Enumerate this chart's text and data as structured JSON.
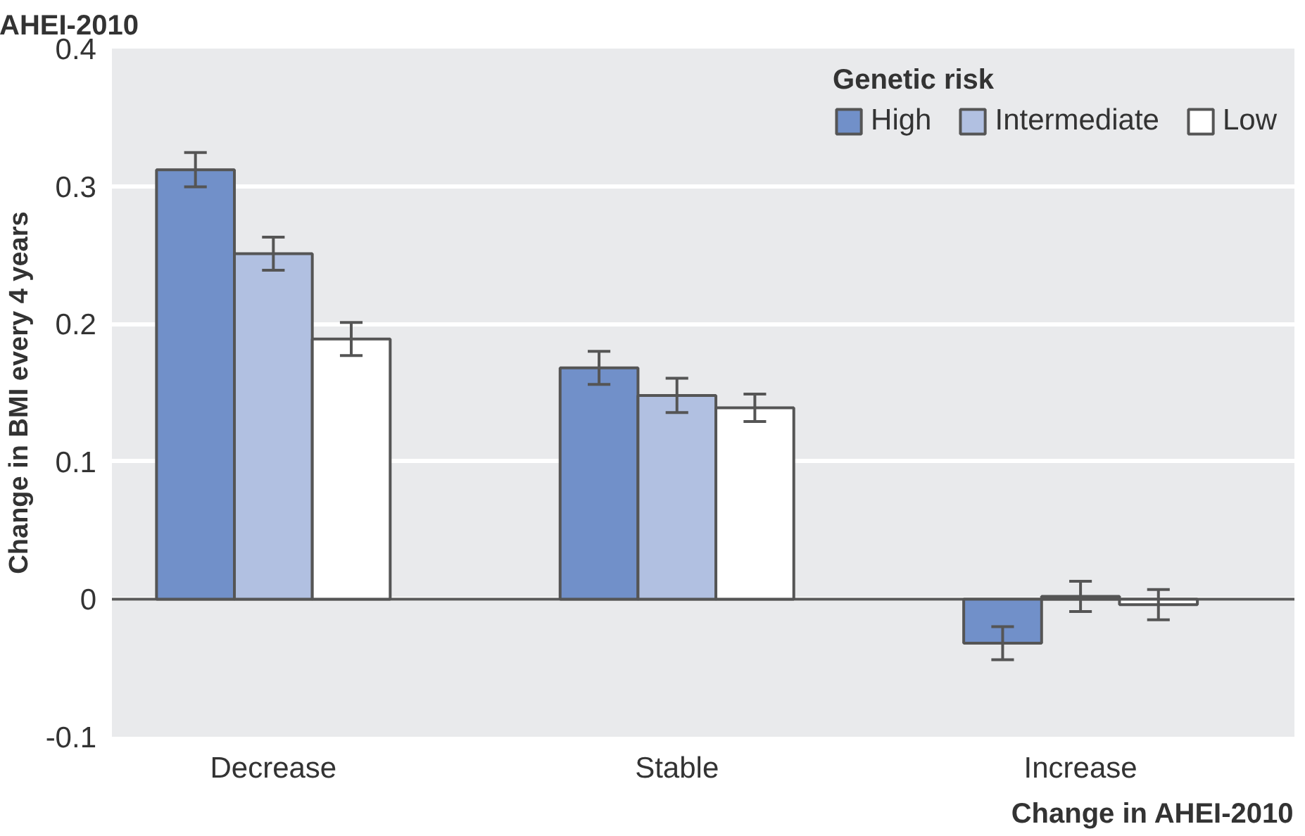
{
  "chart_data": {
    "type": "bar",
    "title": "AHEI-2010",
    "xlabel": "Change in AHEI-2010",
    "ylabel": "Change in BMI every 4 years",
    "legend_title": "Genetic risk",
    "categories": [
      "Decrease",
      "Stable",
      "Increase"
    ],
    "series": [
      {
        "name": "High",
        "color": "#7190c9",
        "values": [
          0.312,
          0.168,
          -0.032
        ],
        "errors": [
          0.0125,
          0.012,
          0.012
        ]
      },
      {
        "name": "Intermediate",
        "color": "#b1c0e1",
        "values": [
          0.251,
          0.148,
          0.002
        ],
        "errors": [
          0.012,
          0.0125,
          0.011
        ]
      },
      {
        "name": "Low",
        "color": "#ffffff",
        "values": [
          0.189,
          0.139,
          -0.004
        ],
        "errors": [
          0.012,
          0.01,
          0.011
        ]
      }
    ],
    "ylim": [
      -0.1,
      0.4
    ],
    "yticks": [
      -0.1,
      0,
      0.1,
      0.2,
      0.3,
      0.4
    ],
    "grid": "y",
    "legend": "top right",
    "ref_lines": [
      {
        "axis": "y",
        "value": 0,
        "color": "#5a5a5a"
      }
    ]
  }
}
